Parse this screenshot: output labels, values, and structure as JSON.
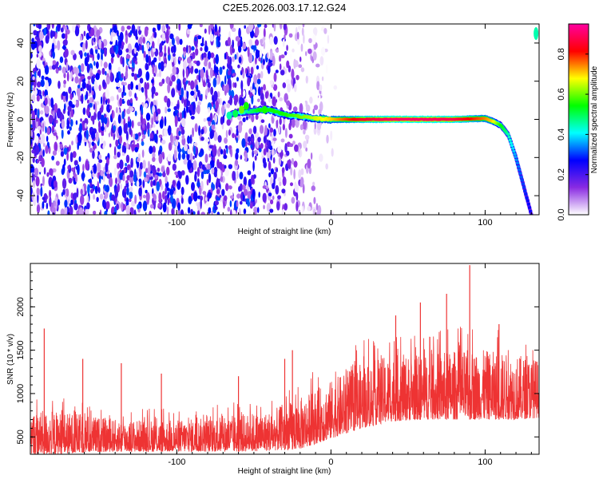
{
  "title": "C2E5.2026.003.17.12.G24",
  "chart_data": [
    {
      "type": "heatmap",
      "xlabel": "Height of straight line (km)",
      "ylabel": "Frequency (Hz)",
      "xlim": [
        -195,
        135
      ],
      "ylim": [
        -50,
        50
      ],
      "xticks": [
        -100,
        0,
        100
      ],
      "xtick_labels": [
        "-100",
        "0",
        "100"
      ],
      "yticks": [
        -40,
        -20,
        0,
        20,
        40
      ],
      "ytick_labels": [
        "-40",
        "-20",
        "0",
        "20",
        "40"
      ],
      "colorbar": {
        "label": "Normalized spectral amplitude",
        "range": [
          0,
          0.95
        ],
        "ticks": [
          0.0,
          0.2,
          0.4,
          0.6,
          0.8
        ],
        "tick_labels": [
          "0.0",
          "0.2",
          "0.4",
          "0.6",
          "0.8"
        ],
        "colors": [
          "#ffffff",
          "#8a2be2",
          "#0000ff",
          "#00ffff",
          "#00ff00",
          "#ffff00",
          "#ff0000",
          "#ff00a0"
        ]
      },
      "signal_track": {
        "height_km": [
          -65,
          -55,
          -45,
          -40,
          -30,
          -20,
          -10,
          0,
          20,
          40,
          60,
          80,
          100,
          105,
          110,
          115,
          120,
          125,
          130
        ],
        "frequency_hz": [
          3,
          4,
          5,
          5,
          2.5,
          1.5,
          0.5,
          0,
          0,
          0,
          0,
          0,
          0.5,
          -1,
          -3,
          -8,
          -20,
          -35,
          -50
        ],
        "amplitude": [
          0.35,
          0.45,
          0.55,
          0.55,
          0.55,
          0.6,
          0.65,
          0.7,
          0.85,
          0.9,
          0.9,
          0.88,
          0.75,
          0.7,
          0.55,
          0.45,
          0.35,
          0.3,
          0.25
        ]
      },
      "noise_region_km": [
        -195,
        -15
      ]
    },
    {
      "type": "line",
      "xlabel": "Height of straight line (km)",
      "ylabel": "SNR (10 * v/v)",
      "xlim": [
        -195,
        135
      ],
      "ylim": [
        300,
        2500
      ],
      "xticks": [
        -100,
        0,
        100
      ],
      "xtick_labels": [
        "-100",
        "0",
        "100"
      ],
      "yticks": [
        500,
        1000,
        1500,
        2000
      ],
      "ytick_labels": [
        "500",
        "1000",
        "1500",
        "2000"
      ],
      "color": "#ee3333",
      "envelope": {
        "x": [
          -195,
          -180,
          -160,
          -140,
          -120,
          -100,
          -80,
          -60,
          -40,
          -20,
          0,
          20,
          40,
          60,
          80,
          100,
          120,
          135
        ],
        "low": [
          300,
          300,
          320,
          330,
          330,
          330,
          330,
          330,
          340,
          360,
          480,
          600,
          680,
          700,
          700,
          700,
          700,
          720
        ],
        "high": [
          800,
          800,
          760,
          700,
          700,
          700,
          720,
          760,
          800,
          950,
          1150,
          1350,
          1450,
          1450,
          1500,
          1500,
          1450,
          1400
        ]
      },
      "spikes": [
        {
          "x": -186,
          "y": 1750
        },
        {
          "x": -161,
          "y": 1400
        },
        {
          "x": -136,
          "y": 1350
        },
        {
          "x": -110,
          "y": 1230
        },
        {
          "x": -60,
          "y": 1200
        },
        {
          "x": -30,
          "y": 1400
        },
        {
          "x": -25,
          "y": 1500
        },
        {
          "x": 42,
          "y": 1900
        },
        {
          "x": 58,
          "y": 2050
        },
        {
          "x": 75,
          "y": 2150
        },
        {
          "x": 90,
          "y": 2480
        },
        {
          "x": 109,
          "y": 1800
        }
      ]
    }
  ]
}
